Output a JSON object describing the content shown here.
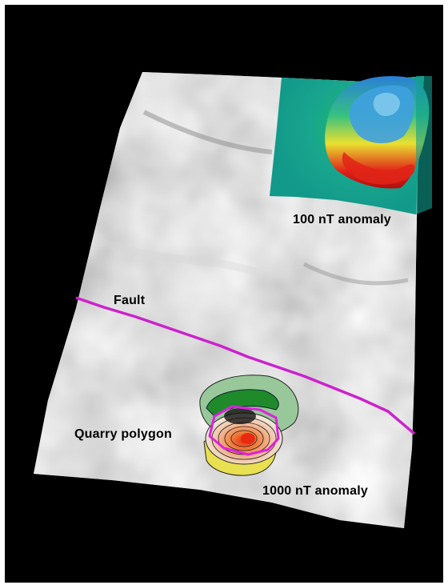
{
  "labels": {
    "anomaly_100": "100 nT anomaly",
    "fault": "Fault",
    "quarry": "Quarry polygon",
    "anomaly_1000": "1000 nT anomaly"
  },
  "colors": {
    "background": "#000000",
    "terrain": "#b8b8b8",
    "fault_line": "#cc22cc",
    "quarry_outline": "#dd22dd",
    "anomaly_high": "#e02010",
    "anomaly_mid": "#f0e030",
    "anomaly_low": "#10a890"
  }
}
